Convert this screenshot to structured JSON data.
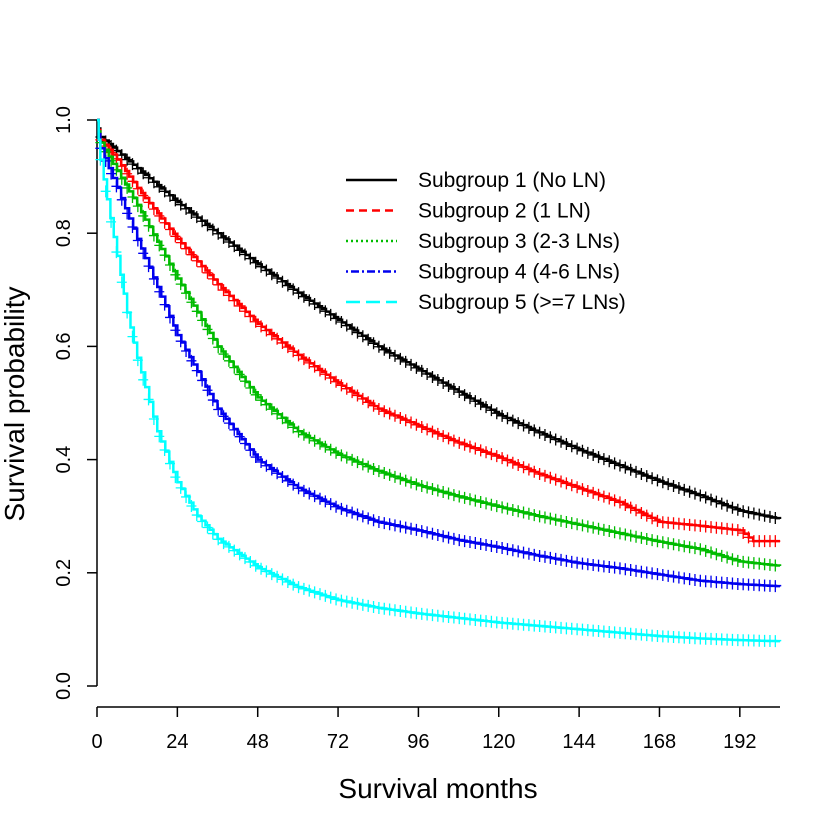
{
  "chart_data": {
    "type": "line",
    "title": "",
    "xlabel": "Survival months",
    "ylabel": "Survival probability",
    "xlim": [
      0,
      204
    ],
    "ylim": [
      0,
      1
    ],
    "x_ticks": [
      "0",
      "24",
      "48",
      "72",
      "96",
      "120",
      "144",
      "168",
      "192"
    ],
    "y_ticks": [
      "0.0",
      "0.2",
      "0.4",
      "0.6",
      "0.8",
      "1.0"
    ],
    "grid": false,
    "legend_position": "top-right",
    "series": [
      {
        "name": "Subgroup 1 (No LN)",
        "color": "#000000",
        "line_style": "solid",
        "x": [
          0,
          1,
          6,
          12,
          24,
          36,
          48,
          60,
          72,
          84,
          96,
          108,
          120,
          132,
          144,
          156,
          168,
          180,
          192,
          204
        ],
        "y": [
          1.0,
          0.97,
          0.945,
          0.915,
          0.855,
          0.8,
          0.745,
          0.695,
          0.647,
          0.6,
          0.56,
          0.52,
          0.48,
          0.448,
          0.418,
          0.39,
          0.362,
          0.337,
          0.31,
          0.295
        ]
      },
      {
        "name": "Subgroup 2 (1 LN)",
        "color": "#ff0000",
        "line_style": "dashed",
        "x": [
          0,
          1,
          6,
          12,
          24,
          36,
          48,
          60,
          72,
          84,
          96,
          108,
          120,
          132,
          144,
          156,
          168,
          180,
          192,
          196,
          204
        ],
        "y": [
          1.0,
          0.965,
          0.93,
          0.88,
          0.79,
          0.71,
          0.64,
          0.585,
          0.535,
          0.49,
          0.46,
          0.43,
          0.405,
          0.375,
          0.35,
          0.325,
          0.29,
          0.283,
          0.275,
          0.256,
          0.256
        ]
      },
      {
        "name": "Subgroup 3 (2-3 LNs)",
        "color": "#00bb00",
        "line_style": "dotted",
        "x": [
          0,
          1,
          6,
          12,
          24,
          36,
          48,
          60,
          72,
          84,
          96,
          108,
          120,
          132,
          144,
          156,
          168,
          180,
          192,
          204
        ],
        "y": [
          1.0,
          0.96,
          0.91,
          0.85,
          0.72,
          0.6,
          0.51,
          0.45,
          0.41,
          0.38,
          0.355,
          0.335,
          0.317,
          0.3,
          0.285,
          0.27,
          0.255,
          0.242,
          0.22,
          0.212
        ]
      },
      {
        "name": "Subgroup 4 (4-6 LNs)",
        "color": "#0000ee",
        "line_style": "dotdash",
        "x": [
          0,
          1,
          6,
          12,
          24,
          36,
          48,
          60,
          72,
          84,
          96,
          108,
          120,
          132,
          144,
          156,
          168,
          180,
          192,
          204
        ],
        "y": [
          1.0,
          0.95,
          0.88,
          0.79,
          0.62,
          0.49,
          0.4,
          0.35,
          0.315,
          0.29,
          0.275,
          0.258,
          0.245,
          0.23,
          0.217,
          0.208,
          0.197,
          0.186,
          0.18,
          0.176
        ]
      },
      {
        "name": "Subgroup 5 (>=7 LNs)",
        "color": "#00ffff",
        "line_style": "longdash",
        "x": [
          0,
          1,
          3,
          6,
          9,
          12,
          18,
          24,
          30,
          36,
          48,
          60,
          72,
          84,
          96,
          108,
          120,
          132,
          144,
          156,
          168,
          180,
          192,
          204
        ],
        "y": [
          1.0,
          0.93,
          0.86,
          0.76,
          0.66,
          0.58,
          0.45,
          0.36,
          0.3,
          0.26,
          0.21,
          0.175,
          0.152,
          0.138,
          0.128,
          0.12,
          0.112,
          0.106,
          0.1,
          0.094,
          0.088,
          0.084,
          0.081,
          0.079
        ]
      }
    ]
  }
}
